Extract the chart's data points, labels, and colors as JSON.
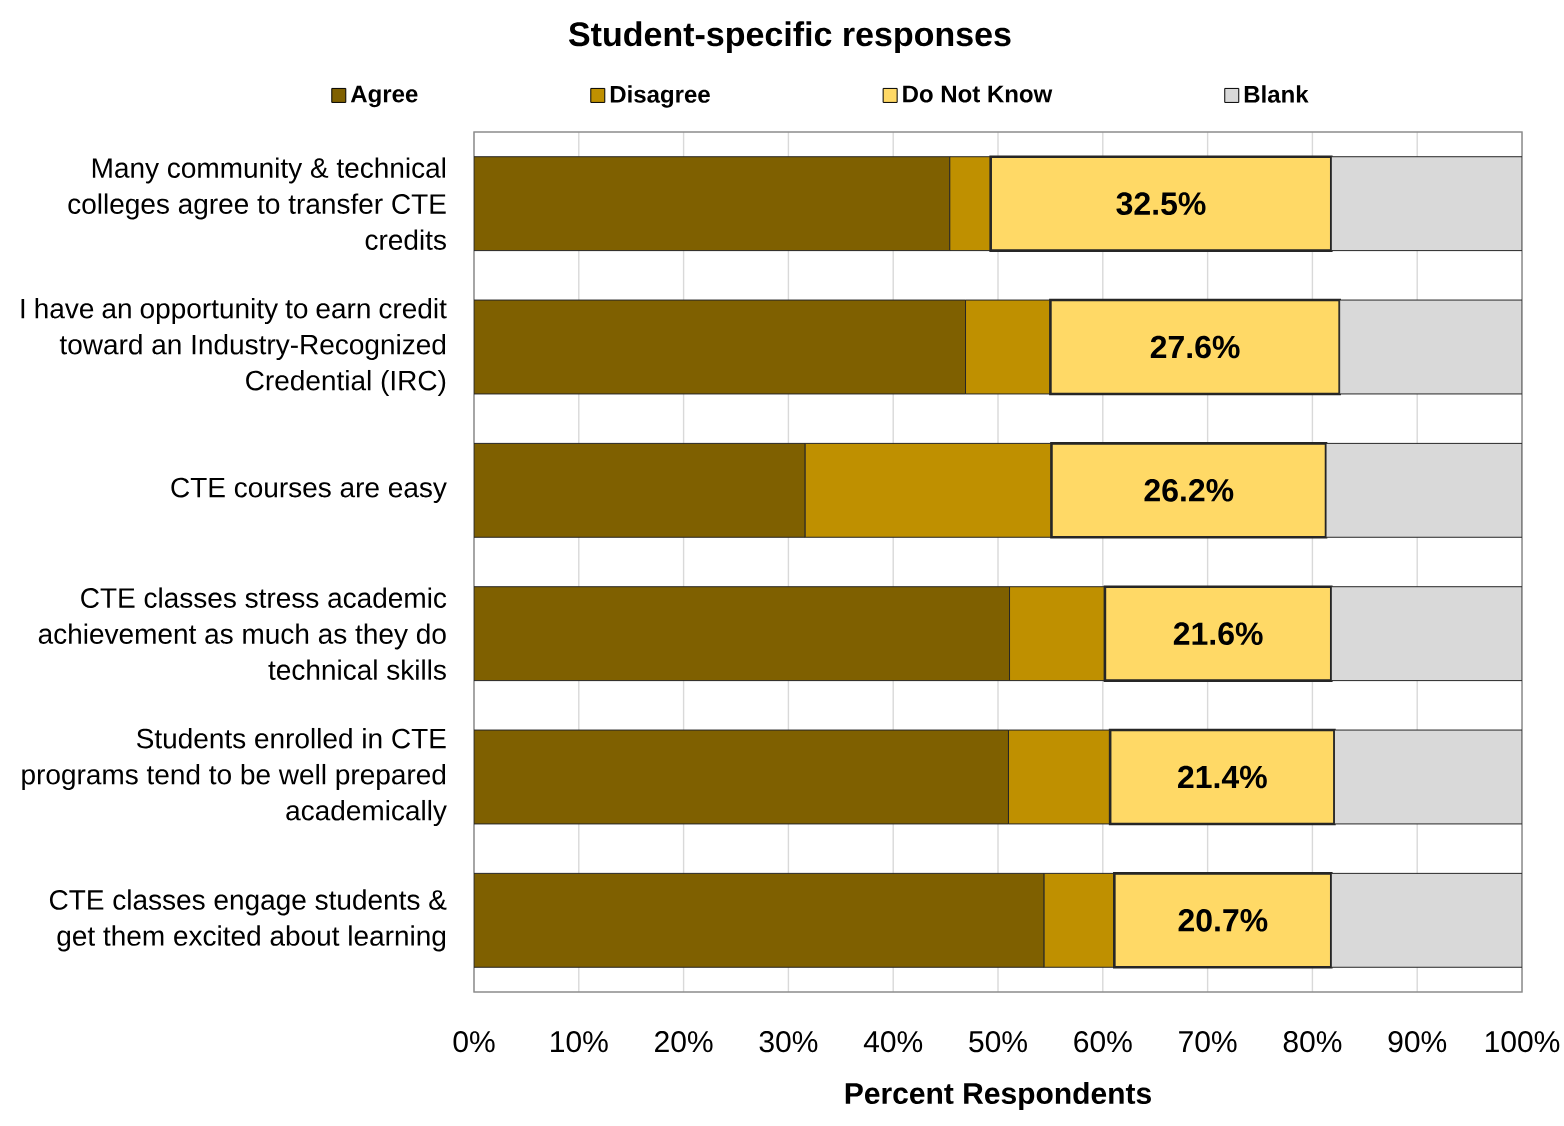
{
  "chart_data": {
    "type": "bar",
    "orientation": "horizontal",
    "stacked": true,
    "title": "Student-specific responses",
    "xlabel": "Percent Respondents",
    "categories": [
      "Many community & technical colleges agree to transfer CTE credits",
      "I have an opportunity to earn credit toward an Industry-Recognized Credential (IRC)",
      "CTE courses are easy",
      "CTE classes stress academic achievement as much as they do technical skills",
      "Students enrolled in CTE programs tend to be well prepared academically",
      "CTE classes engage students & get them excited about learning"
    ],
    "series": [
      {
        "name": "Agree",
        "color": "#7f6000",
        "values": [
          45.4,
          46.9,
          31.6,
          51.1,
          51.0,
          54.4
        ]
      },
      {
        "name": "Disagree",
        "color": "#bf9000",
        "values": [
          3.9,
          8.1,
          23.5,
          9.1,
          9.7,
          6.7
        ]
      },
      {
        "name": "Do Not Know",
        "color": "#ffd966",
        "values": [
          32.5,
          27.6,
          26.2,
          21.6,
          21.4,
          20.7
        ],
        "value_labels": [
          "32.5%",
          "27.6%",
          "26.2%",
          "21.6%",
          "21.4%",
          "20.7%"
        ]
      },
      {
        "name": "Blank",
        "color": "#d9d9d9",
        "values": [
          18.2,
          17.4,
          18.7,
          18.2,
          17.9,
          18.2
        ]
      }
    ],
    "xlim": [
      0,
      100
    ],
    "xticks": [
      {
        "value": 0,
        "label": "0%"
      },
      {
        "value": 10,
        "label": "10%"
      },
      {
        "value": 20,
        "label": "20%"
      },
      {
        "value": 30,
        "label": "30%"
      },
      {
        "value": 40,
        "label": "40%"
      },
      {
        "value": 50,
        "label": "50%"
      },
      {
        "value": 60,
        "label": "60%"
      },
      {
        "value": 70,
        "label": "70%"
      },
      {
        "value": 80,
        "label": "80%"
      },
      {
        "value": 90,
        "label": "90%"
      },
      {
        "value": 100,
        "label": "100%"
      }
    ],
    "grid": "x",
    "legend": "top"
  }
}
